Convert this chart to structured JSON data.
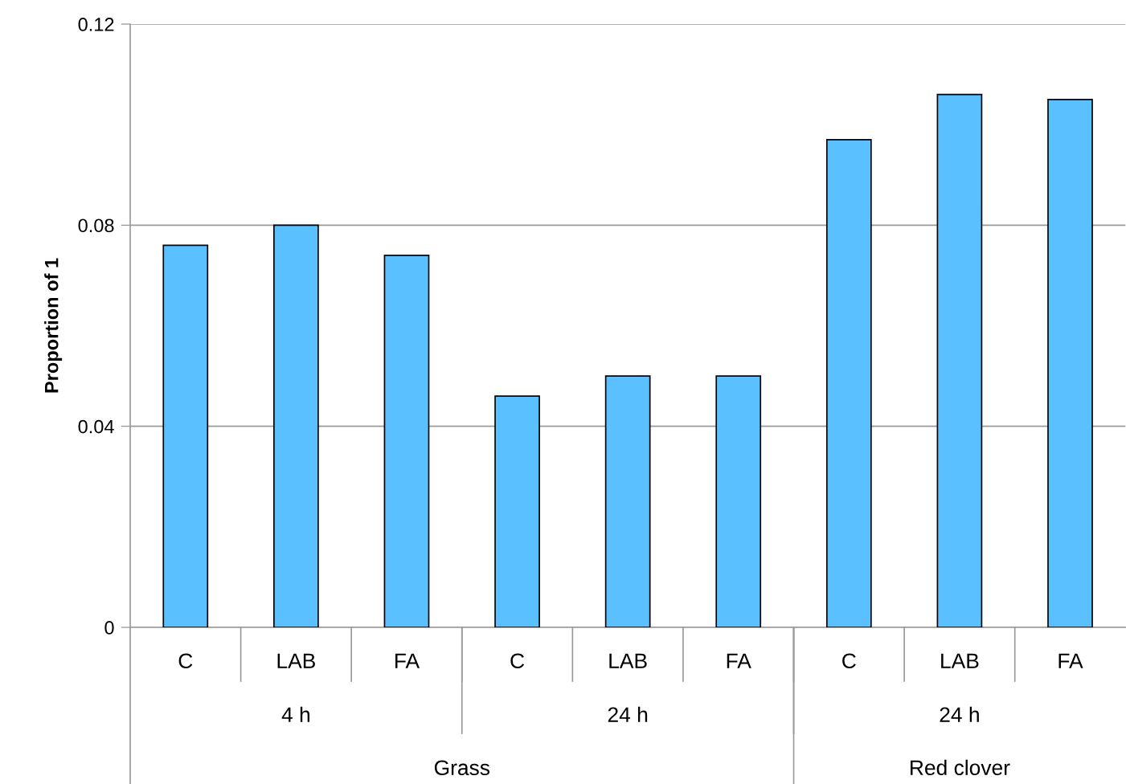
{
  "chart_data": {
    "type": "bar",
    "ylabel": "Proportion of 1",
    "categories": [
      "C",
      "LAB",
      "FA",
      "C",
      "LAB",
      "FA",
      "C",
      "LAB",
      "FA"
    ],
    "values": [
      0.076,
      0.08,
      0.074,
      0.046,
      0.05,
      0.05,
      0.097,
      0.106,
      0.105
    ],
    "color": "#5bc0ff",
    "ylim": [
      0,
      0.12
    ],
    "yticks": [
      {
        "value": 0,
        "label": "0"
      },
      0.04,
      0.08,
      0.12
    ],
    "grid": "y",
    "legend": false,
    "annotations": [
      "4 h",
      "24 h",
      "24 h",
      "Grass",
      "Red clover"
    ]
  }
}
